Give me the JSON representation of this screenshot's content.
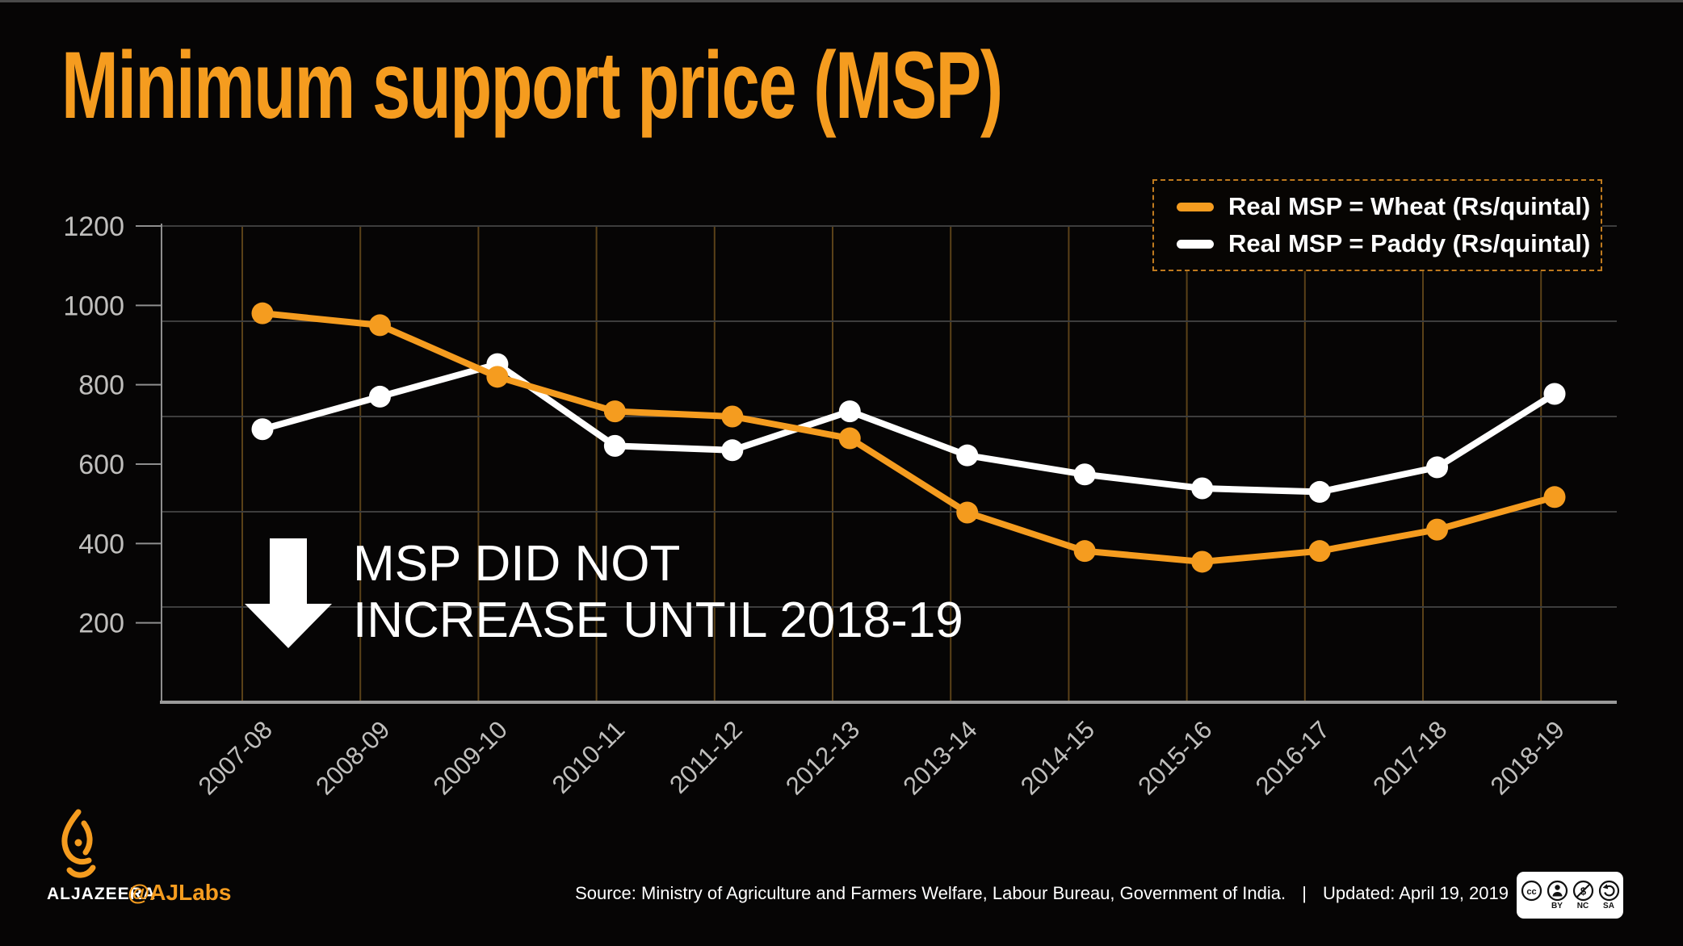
{
  "title": "Minimum support price (MSP)",
  "colors": {
    "accent_orange": "#F59C1F",
    "series_wheat": "#F59C1F",
    "series_paddy": "#FFFFFF",
    "legend_border": "#BF7A1E",
    "h_grid": "#3D3D3D",
    "v_grid": "#5A4118",
    "axis": "#8E8E8E",
    "baseline": "#9A9A9A",
    "tick_label": "#C0BFBD",
    "background": "#060505"
  },
  "chart_data": {
    "type": "line",
    "title": "Minimum support price (MSP)",
    "categories": [
      "2007-08",
      "2008-09",
      "2009-10",
      "2010-11",
      "2011-12",
      "2012-13",
      "2013-14",
      "2014-15",
      "2015-16",
      "2016-17",
      "2017-18",
      "2018-19"
    ],
    "series": [
      {
        "name": "Real MSP = Wheat (Rs/quintal)",
        "color": "#F59C1F",
        "values": [
          980,
          950,
          820,
          733,
          720,
          665,
          478,
          381,
          354,
          381,
          435,
          517
        ]
      },
      {
        "name": "Real MSP = Paddy (Rs/quintal)",
        "color": "#FFFFFF",
        "values": [
          688,
          770,
          852,
          646,
          635,
          733,
          622,
          574,
          539,
          530,
          592,
          777
        ]
      }
    ],
    "ylim": [
      0,
      1200
    ],
    "yticks": [
      200,
      400,
      600,
      800,
      1000,
      1200
    ],
    "grid": "on",
    "legend_position": "top-right",
    "xlabel": "",
    "ylabel": ""
  },
  "annotation": {
    "line1": "MSP DID NOT",
    "line2": "INCREASE UNTIL 2018-19"
  },
  "footer": {
    "brand": "ALJAZEERA",
    "handle": "@AJLabs",
    "source": "Source: Ministry of Agriculture and Farmers Welfare, Labour Bureau, Government of India.",
    "separator": "|",
    "updated": "Updated: April 19, 2019",
    "license": {
      "labels": [
        "BY",
        "NC",
        "SA"
      ]
    }
  }
}
